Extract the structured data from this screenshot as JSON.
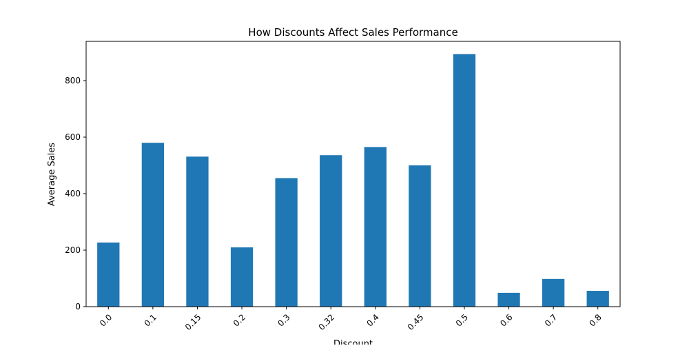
{
  "chart_data": {
    "type": "bar",
    "title": "How Discounts Affect Sales Performance",
    "xlabel": "Discount",
    "ylabel": "Average Sales",
    "categories": [
      "0.0",
      "0.1",
      "0.15",
      "0.2",
      "0.3",
      "0.32",
      "0.4",
      "0.45",
      "0.5",
      "0.6",
      "0.7",
      "0.8"
    ],
    "values": [
      227,
      580,
      531,
      210,
      455,
      536,
      565,
      500,
      894,
      49,
      98,
      56
    ],
    "ylim": [
      0,
      939
    ],
    "yticks": [
      0,
      200,
      400,
      600,
      800
    ],
    "grid": false,
    "bar_color": "#1f77b4"
  }
}
